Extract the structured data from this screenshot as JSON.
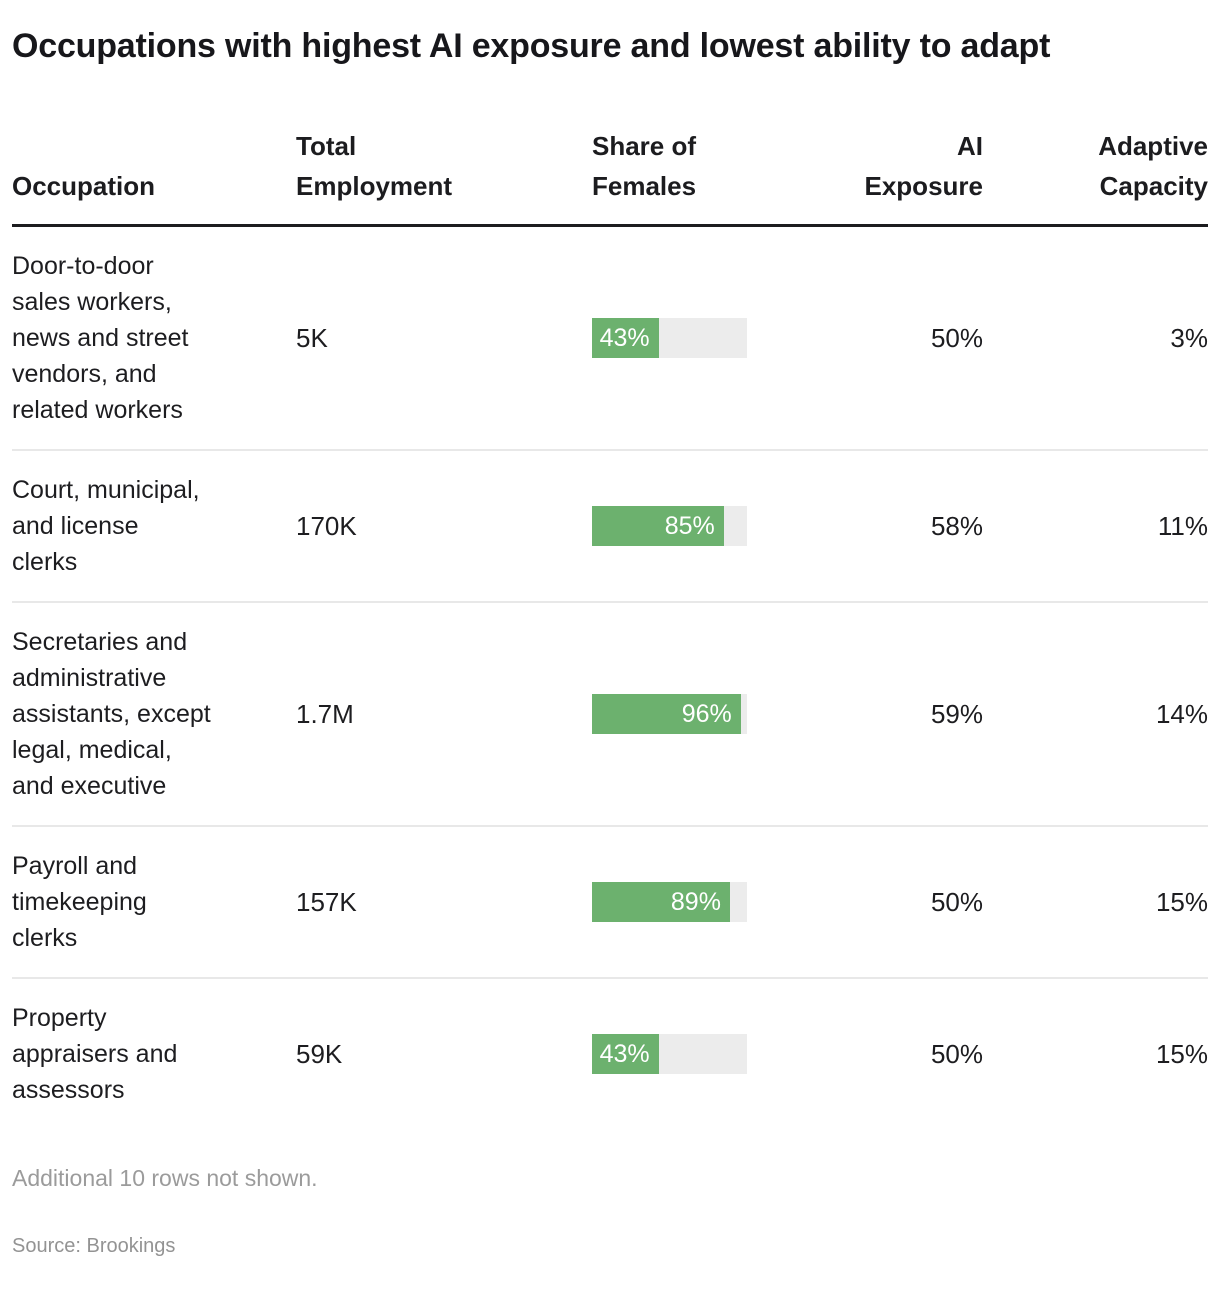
{
  "chart_data": {
    "type": "table",
    "title": "Occupations with highest AI exposure and lowest ability to adapt",
    "columns": [
      "Occupation",
      "Total Employment",
      "Share of Females",
      "AI Exposure",
      "Adaptive Capacity"
    ],
    "bar_column": "Share of Females",
    "bar_axis": {
      "min": 0,
      "max": 100
    },
    "rows": [
      {
        "occupation": "Door-to-door sales workers, news and street vendors, and related workers",
        "occupation_display": "Door-to-door\nsales workers,\nnews and street\nvendors, and\nrelated workers",
        "total_employment": "5K",
        "share_of_females_pct": 43,
        "share_of_females_label": "43%",
        "ai_exposure_pct": 50,
        "ai_exposure_label": "50%",
        "adaptive_capacity_pct": 3,
        "adaptive_capacity_label": "3%"
      },
      {
        "occupation": "Court, municipal, and license clerks",
        "occupation_display": "Court, municipal,\nand license\nclerks",
        "total_employment": "170K",
        "share_of_females_pct": 85,
        "share_of_females_label": "85%",
        "ai_exposure_pct": 58,
        "ai_exposure_label": "58%",
        "adaptive_capacity_pct": 11,
        "adaptive_capacity_label": "11%"
      },
      {
        "occupation": "Secretaries and administrative assistants, except legal, medical, and executive",
        "occupation_display": "Secretaries and\nadministrative\nassistants, except\nlegal, medical,\nand executive",
        "total_employment": "1.7M",
        "share_of_females_pct": 96,
        "share_of_females_label": "96%",
        "ai_exposure_pct": 59,
        "ai_exposure_label": "59%",
        "adaptive_capacity_pct": 14,
        "adaptive_capacity_label": "14%"
      },
      {
        "occupation": "Payroll and timekeeping clerks",
        "occupation_display": "Payroll and\ntimekeeping\nclerks",
        "total_employment": "157K",
        "share_of_females_pct": 89,
        "share_of_females_label": "89%",
        "ai_exposure_pct": 50,
        "ai_exposure_label": "50%",
        "adaptive_capacity_pct": 15,
        "adaptive_capacity_label": "15%"
      },
      {
        "occupation": "Property appraisers and assessors",
        "occupation_display": "Property\nappraisers and\nassessors",
        "total_employment": "59K",
        "share_of_females_pct": 43,
        "share_of_females_label": "43%",
        "ai_exposure_pct": 50,
        "ai_exposure_label": "50%",
        "adaptive_capacity_pct": 15,
        "adaptive_capacity_label": "15%"
      }
    ]
  },
  "header": {
    "occupation": "Occupation",
    "total_employment": "Total\nEmployment",
    "share_of_females": "Share of\nFemales",
    "ai_exposure": "AI\nExposure",
    "adaptive_capacity": "Adaptive\nCapacity"
  },
  "footnotes": {
    "note": "Additional 10 rows not shown.",
    "source": "Source: Brookings"
  },
  "colors": {
    "bar_fill": "#6cb16e",
    "bar_track": "#ececec",
    "text_primary": "#1c1c1f",
    "text_muted": "#9b9b9b",
    "row_divider": "#e8e8e8",
    "header_rule": "#1c1c1f"
  }
}
